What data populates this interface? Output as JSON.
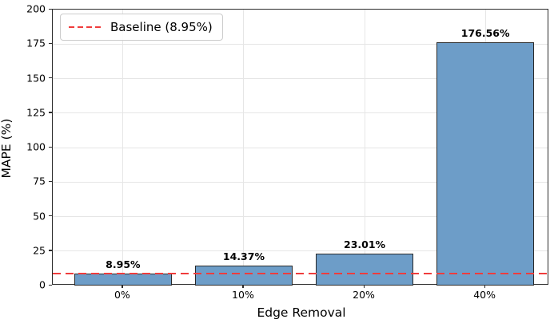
{
  "chart_data": {
    "type": "bar",
    "title": "",
    "xlabel": "Edge Removal",
    "ylabel": "MAPE (%)",
    "categories": [
      "0%",
      "10%",
      "20%",
      "40%"
    ],
    "values": [
      8.95,
      14.37,
      23.01,
      176.56
    ],
    "bar_labels": [
      "8.95%",
      "14.37%",
      "23.01%",
      "176.56%"
    ],
    "ylim": [
      0,
      200
    ],
    "yticks": [
      0,
      25,
      50,
      75,
      100,
      125,
      150,
      175,
      200
    ],
    "grid": "both",
    "legend_position": "upper left",
    "baseline": {
      "value": 8.95,
      "label": "Baseline (8.95%)"
    },
    "colors": {
      "bar_fill": "#6d9dc8",
      "bar_edge": "#2a2a2a",
      "baseline_red": "#f03c3c",
      "grid": "#e6e6e6",
      "spine": "#2b2b2b",
      "text": "#000000",
      "legend_border": "#cccccc"
    }
  }
}
